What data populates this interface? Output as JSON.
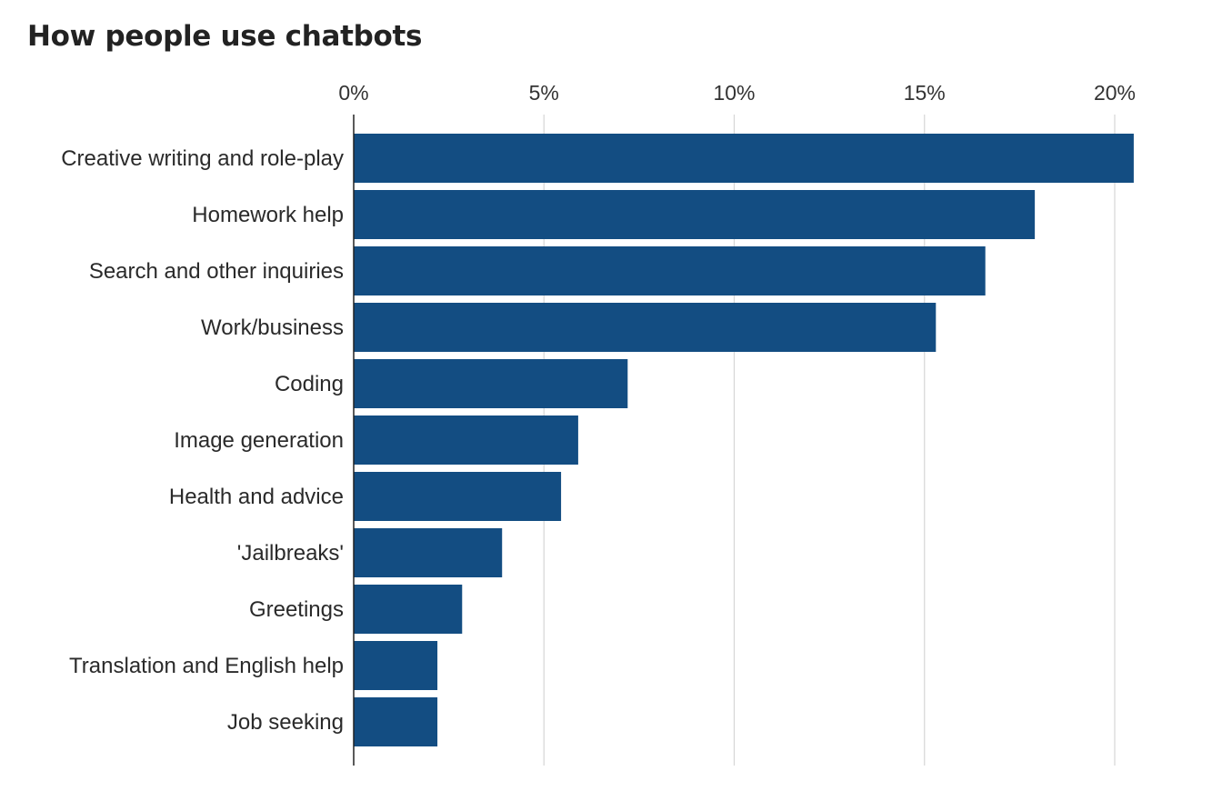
{
  "chart_data": {
    "type": "bar",
    "orientation": "horizontal",
    "title": "How people use chatbots",
    "xlabel": "",
    "ylabel": "",
    "xlim": [
      0,
      20.8
    ],
    "x_ticks": [
      0,
      5,
      10,
      15,
      20
    ],
    "x_tick_labels": [
      "0%",
      "5%",
      "10%",
      "15%",
      "20%"
    ],
    "grid": true,
    "axis_position": "top",
    "bar_color": "#134d82",
    "categories": [
      "Creative writing and role-play",
      "Homework help",
      "Search and other inquiries",
      "Work/business",
      "Coding",
      "Image generation",
      "Health and advice",
      "'Jailbreaks'",
      "Greetings",
      "Translation and English help",
      "Job seeking"
    ],
    "values": [
      20.5,
      17.9,
      16.6,
      15.3,
      7.2,
      5.9,
      5.45,
      3.9,
      2.85,
      2.2,
      2.2
    ]
  }
}
